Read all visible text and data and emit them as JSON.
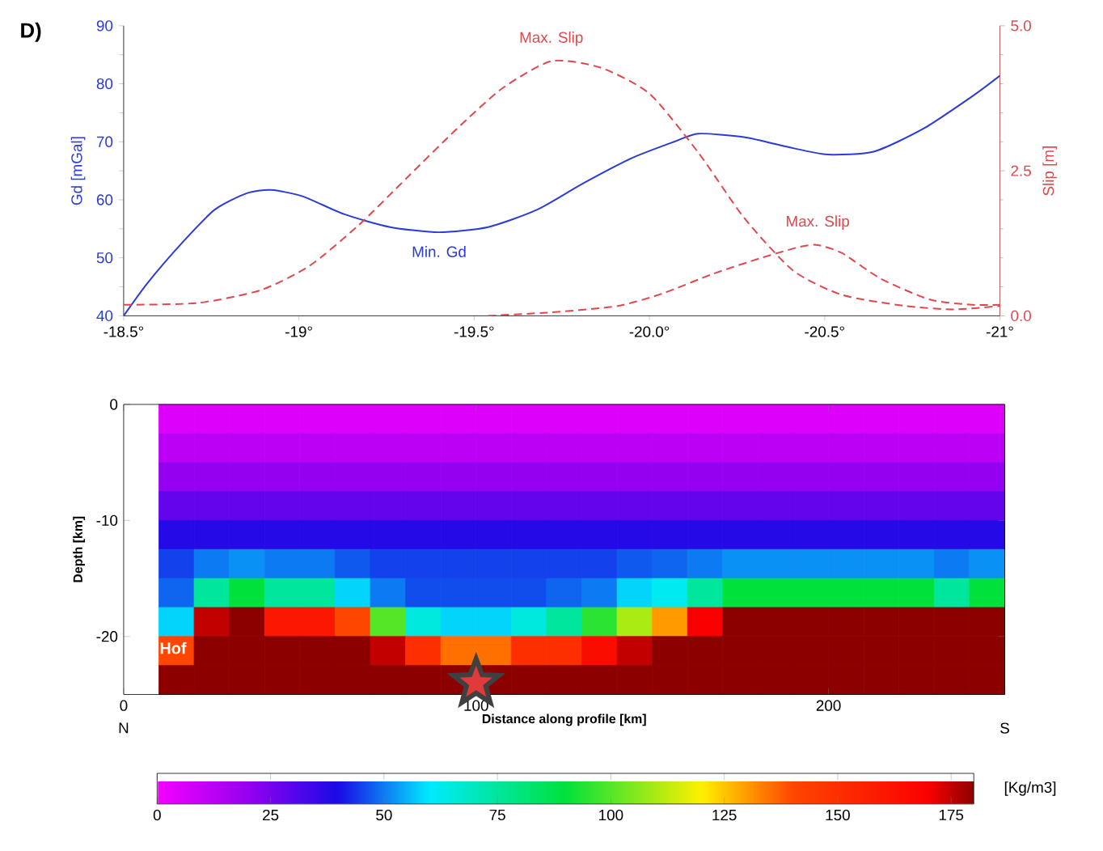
{
  "chart_data": [
    {
      "type": "line",
      "title": "D)",
      "ylabel": "Gd [mGal]",
      "y2label": "Slip [m]",
      "xlim": [
        -18.5,
        -21
      ],
      "xticks": [
        {
          "value": -18.5,
          "label": "-18.5°"
        },
        {
          "value": -19,
          "label": "-19°"
        },
        {
          "value": -19.5,
          "label": "-19.5°"
        },
        {
          "value": -20,
          "label": "-20.0°"
        },
        {
          "value": -20.5,
          "label": "-20.5°"
        },
        {
          "value": -21,
          "label": "-21°"
        }
      ],
      "ylim": [
        40,
        90
      ],
      "yticks": [
        40,
        50,
        60,
        70,
        80,
        90
      ],
      "y2lim": [
        0,
        5
      ],
      "y2ticks": [
        {
          "value": 0,
          "label": "0.0"
        },
        {
          "value": 2.5,
          "label": "2.5"
        },
        {
          "value": 5,
          "label": "5.0"
        }
      ],
      "series": [
        {
          "color": "#2b3bd6",
          "line_style": "solid",
          "x": [
            -18.5,
            -18.57,
            -18.67,
            -18.76,
            -18.85,
            -18.92,
            -19.01,
            -19.13,
            -19.26,
            -19.4,
            -19.54,
            -19.68,
            -19.81,
            -19.95,
            -20.07,
            -20.14,
            -20.27,
            -20.41,
            -20.51,
            -20.64,
            -20.78,
            -20.92,
            -21.0
          ],
          "values": [
            40.0,
            45.8,
            52.8,
            58.3,
            61.1,
            61.7,
            60.6,
            57.5,
            55.3,
            54.4,
            55.3,
            58.3,
            62.8,
            67.2,
            70.0,
            71.4,
            70.8,
            68.9,
            67.8,
            68.3,
            72.2,
            77.8,
            81.4
          ]
        },
        {
          "color": "#e0474c",
          "line_style": "dashed",
          "axis": "y2",
          "x": [
            -18.5,
            -18.71,
            -18.89,
            -19.03,
            -19.17,
            -19.31,
            -19.45,
            -19.58,
            -19.72,
            -19.86,
            -20.0,
            -20.14,
            -20.27,
            -20.41,
            -20.55,
            -20.73,
            -20.87,
            -21.0
          ],
          "values": [
            0.19,
            0.22,
            0.44,
            0.86,
            1.56,
            2.39,
            3.22,
            3.92,
            4.39,
            4.28,
            3.83,
            2.81,
            1.69,
            0.78,
            0.36,
            0.17,
            0.11,
            0.17
          ]
        },
        {
          "color": "#e0474c",
          "line_style": "dashed",
          "axis": "y2",
          "x": [
            -19.54,
            -19.72,
            -19.91,
            -20.04,
            -20.18,
            -20.32,
            -20.43,
            -20.48,
            -20.55,
            -20.66,
            -20.8,
            -20.92,
            -21.0
          ],
          "values": [
            0.0,
            0.06,
            0.17,
            0.39,
            0.72,
            1.0,
            1.19,
            1.22,
            1.08,
            0.64,
            0.28,
            0.19,
            0.19
          ]
        }
      ],
      "annotations": [
        {
          "text": "Max. Slip",
          "x": -19.72,
          "y": 83.9
        },
        {
          "text": "Min. Gd",
          "x": -19.4,
          "y": 54.4
        },
        {
          "text": "Max. Slip",
          "x": -20.48,
          "y": 52.2
        }
      ]
    },
    {
      "type": "heatmap",
      "xlabel": "Distance along profile [km]",
      "ylabel": "Depth [km]",
      "clabel": "[Kg/m3]",
      "xlim": [
        0,
        250
      ],
      "xticks": [
        0,
        100,
        200
      ],
      "ylim": [
        -25,
        0
      ],
      "yticks": [
        0,
        -10,
        -20
      ],
      "clim": [
        0,
        180
      ],
      "cticks": [
        0,
        25,
        50,
        75,
        100,
        125,
        150,
        175
      ],
      "x": [
        15,
        25,
        35,
        45,
        55,
        65,
        75,
        85,
        95,
        105,
        115,
        125,
        135,
        145,
        155,
        165,
        175,
        185,
        195,
        205,
        215,
        225,
        235,
        245
      ],
      "y": [
        -1.25,
        -3.75,
        -6.25,
        -8.75,
        -11.25,
        -13.75,
        -16.25,
        -18.75,
        -21.25,
        -23.75
      ],
      "cells": [
        [
          5,
          5,
          5,
          5,
          5,
          5,
          5,
          5,
          5,
          5,
          5,
          5,
          5,
          5,
          5,
          5,
          5,
          5,
          5,
          5,
          5,
          5,
          5,
          5
        ],
        [
          12,
          12,
          12,
          12,
          12,
          12,
          12,
          12,
          12,
          12,
          12,
          12,
          12,
          12,
          12,
          12,
          12,
          12,
          12,
          12,
          12,
          12,
          12,
          12
        ],
        [
          20,
          20,
          20,
          20,
          20,
          20,
          20,
          20,
          20,
          20,
          20,
          20,
          20,
          20,
          20,
          20,
          20,
          20,
          20,
          20,
          20,
          20,
          20,
          20
        ],
        [
          28,
          28,
          28,
          28,
          28,
          28,
          28,
          28,
          28,
          28,
          28,
          28,
          28,
          28,
          28,
          28,
          28,
          28,
          28,
          28,
          28,
          28,
          28,
          28
        ],
        [
          38,
          38,
          38,
          38,
          38,
          38,
          38,
          38,
          38,
          38,
          38,
          38,
          38,
          38,
          38,
          38,
          38,
          38,
          38,
          38,
          38,
          38,
          38,
          38
        ],
        [
          45,
          50,
          52,
          50,
          50,
          47,
          45,
          45,
          45,
          45,
          45,
          45,
          45,
          47,
          48,
          50,
          52,
          52,
          52,
          52,
          52,
          52,
          50,
          52
        ],
        [
          48,
          75,
          90,
          75,
          75,
          58,
          50,
          46,
          46,
          46,
          46,
          48,
          50,
          58,
          62,
          75,
          90,
          90,
          90,
          90,
          90,
          90,
          75,
          90
        ],
        [
          58,
          175,
          180,
          160,
          160,
          140,
          100,
          65,
          58,
          58,
          65,
          75,
          95,
          110,
          130,
          170,
          180,
          180,
          180,
          180,
          180,
          180,
          180,
          180
        ],
        [
          140,
          180,
          180,
          180,
          180,
          180,
          175,
          150,
          135,
          135,
          150,
          150,
          165,
          175,
          180,
          180,
          180,
          180,
          180,
          180,
          180,
          180,
          180,
          180
        ],
        [
          180,
          180,
          180,
          180,
          180,
          180,
          180,
          180,
          180,
          180,
          180,
          180,
          180,
          180,
          180,
          180,
          180,
          180,
          180,
          180,
          180,
          180,
          180,
          180
        ]
      ],
      "marker": "star",
      "series": [
        {
          "type": "scatter",
          "color": "#e03a3a",
          "x": [
            100
          ],
          "values": [
            -24
          ]
        }
      ],
      "annotations": [
        "Hof",
        "N",
        "S"
      ]
    }
  ]
}
